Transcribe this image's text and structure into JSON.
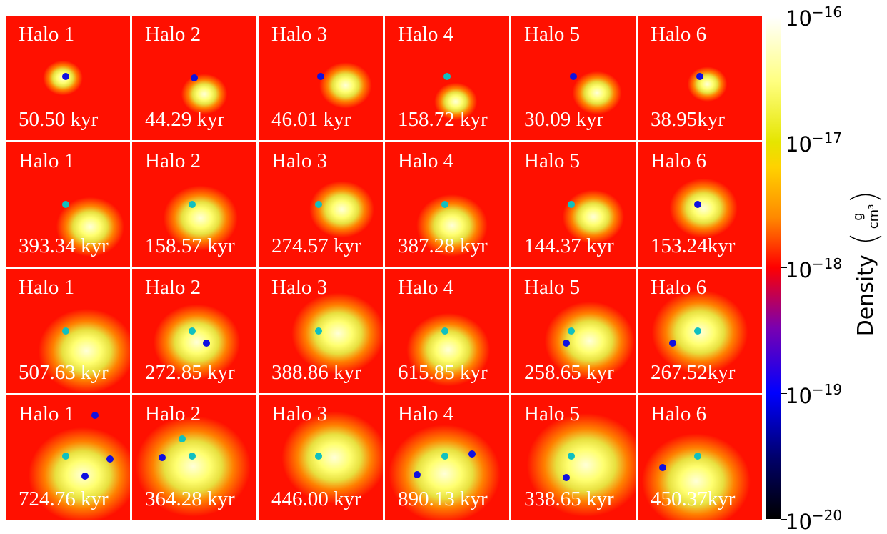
{
  "panels": [
    [
      {
        "label": "Halo 1",
        "time": "50.50 kyr"
      },
      {
        "label": "Halo 2",
        "time": "44.29 kyr"
      },
      {
        "label": "Halo 3",
        "time": "46.01 kyr"
      },
      {
        "label": "Halo 4",
        "time": "158.72 kyr"
      },
      {
        "label": "Halo 5",
        "time": "30.09 kyr"
      },
      {
        "label": "Halo 6",
        "time": "38.95kyr"
      }
    ],
    [
      {
        "label": "Halo 1",
        "time": "393.34 kyr"
      },
      {
        "label": "Halo 2",
        "time": "158.57 kyr"
      },
      {
        "label": "Halo 3",
        "time": "274.57 kyr"
      },
      {
        "label": "Halo 4",
        "time": "387.28 kyr"
      },
      {
        "label": "Halo 5",
        "time": "144.37 kyr"
      },
      {
        "label": "Halo 6",
        "time": "153.24kyr"
      }
    ],
    [
      {
        "label": "Halo 1",
        "time": "507.63 kyr"
      },
      {
        "label": "Halo 2",
        "time": "272.85 kyr"
      },
      {
        "label": "Halo 3",
        "time": "388.86 kyr"
      },
      {
        "label": "Halo 4",
        "time": "615.85 kyr"
      },
      {
        "label": "Halo 5",
        "time": "258.65 kyr"
      },
      {
        "label": "Halo 6",
        "time": "267.52kyr"
      }
    ],
    [
      {
        "label": "Halo 1",
        "time": "724.76 kyr"
      },
      {
        "label": "Halo 2",
        "time": "364.28 kyr"
      },
      {
        "label": "Halo 3",
        "time": "446.00 kyr"
      },
      {
        "label": "Halo 4",
        "time": "890.13 kyr"
      },
      {
        "label": "Halo 5",
        "time": "338.65 kyr"
      },
      {
        "label": "Halo 6",
        "time": "450.37kyr"
      }
    ]
  ],
  "colorbar": {
    "ticks": [
      {
        "base": "10",
        "exponent": "−16"
      },
      {
        "base": "10",
        "exponent": "−17"
      },
      {
        "base": "10",
        "exponent": "−18"
      },
      {
        "base": "10",
        "exponent": "−19"
      },
      {
        "base": "10",
        "exponent": "−20"
      }
    ],
    "label": "Density",
    "unit_numerator": "g",
    "unit_denominator": "cm³"
  }
}
